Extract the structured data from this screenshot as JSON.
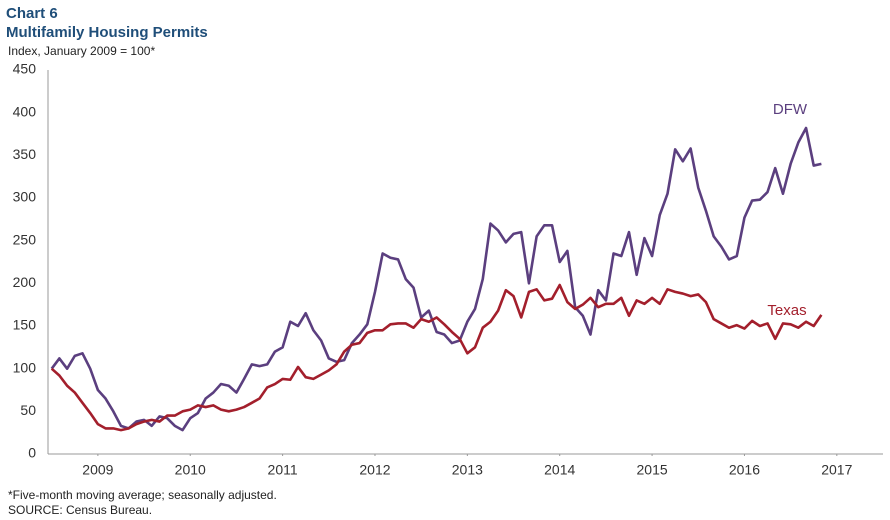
{
  "chart_data": {
    "type": "line",
    "title": "Chart 6",
    "subtitle": "Multifamily Housing Permits",
    "y_label": "Index, January 2009 = 100*",
    "notes": [
      "*Five-month moving average; seasonally adjusted.",
      "SOURCE: Census Bureau."
    ],
    "x": [
      2009.0,
      2009.083,
      2009.167,
      2009.25,
      2009.333,
      2009.417,
      2009.5,
      2009.583,
      2009.667,
      2009.75,
      2009.833,
      2009.917,
      2010.0,
      2010.083,
      2010.167,
      2010.25,
      2010.333,
      2010.417,
      2010.5,
      2010.583,
      2010.667,
      2010.75,
      2010.833,
      2010.917,
      2011.0,
      2011.083,
      2011.167,
      2011.25,
      2011.333,
      2011.417,
      2011.5,
      2011.583,
      2011.667,
      2011.75,
      2011.833,
      2011.917,
      2012.0,
      2012.083,
      2012.167,
      2012.25,
      2012.333,
      2012.417,
      2012.5,
      2012.583,
      2012.667,
      2012.75,
      2012.833,
      2012.917,
      2013.0,
      2013.083,
      2013.167,
      2013.25,
      2013.333,
      2013.417,
      2013.5,
      2013.583,
      2013.667,
      2013.75,
      2013.833,
      2013.917,
      2014.0,
      2014.083,
      2014.167,
      2014.25,
      2014.333,
      2014.417,
      2014.5,
      2014.583,
      2014.667,
      2014.75,
      2014.833,
      2014.917,
      2015.0,
      2015.083,
      2015.167,
      2015.25,
      2015.333,
      2015.417,
      2015.5,
      2015.583,
      2015.667,
      2015.75,
      2015.833,
      2015.917,
      2016.0,
      2016.083,
      2016.167,
      2016.25,
      2016.333,
      2016.417,
      2016.5,
      2016.583,
      2016.667,
      2016.75,
      2016.833,
      2016.917,
      2017.0,
      2017.083,
      2017.167,
      2017.25,
      2017.333
    ],
    "series": [
      {
        "name": "DFW",
        "color": "#5b3f7f",
        "values": [
          100,
          112,
          100,
          115,
          118,
          100,
          75,
          65,
          50,
          33,
          30,
          38,
          40,
          33,
          44,
          42,
          33,
          28,
          42,
          48,
          65,
          72,
          82,
          80,
          72,
          88,
          105,
          103,
          105,
          120,
          125,
          155,
          150,
          165,
          145,
          133,
          112,
          108,
          110,
          130,
          140,
          152,
          190,
          235,
          230,
          228,
          205,
          195,
          160,
          168,
          143,
          140,
          130,
          133,
          155,
          170,
          205,
          270,
          262,
          248,
          258,
          260,
          200,
          255,
          268,
          268,
          225,
          238,
          172,
          162,
          140,
          192,
          180,
          235,
          232,
          260,
          210,
          253,
          232,
          280,
          305,
          357,
          343,
          358,
          312,
          285,
          255,
          243,
          228,
          232,
          277,
          297,
          298,
          307,
          335,
          305,
          340,
          365,
          382,
          338,
          340
        ]
      },
      {
        "name": "Texas",
        "color": "#a31f2c",
        "values": [
          100,
          92,
          80,
          72,
          60,
          48,
          35,
          30,
          30,
          28,
          30,
          35,
          38,
          40,
          38,
          45,
          45,
          50,
          52,
          57,
          55,
          57,
          52,
          50,
          52,
          55,
          60,
          65,
          78,
          82,
          88,
          87,
          102,
          90,
          88,
          93,
          98,
          105,
          120,
          128,
          130,
          142,
          145,
          145,
          152,
          153,
          153,
          148,
          158,
          155,
          160,
          152,
          143,
          135,
          118,
          125,
          148,
          155,
          168,
          192,
          185,
          160,
          190,
          193,
          180,
          182,
          198,
          178,
          170,
          175,
          183,
          172,
          176,
          176,
          183,
          162,
          180,
          176,
          183,
          176,
          193,
          190,
          188,
          185,
          187,
          178,
          158,
          153,
          148,
          151,
          147,
          156,
          150,
          153,
          135,
          153,
          152,
          148,
          155,
          150,
          163
        ]
      }
    ],
    "xlim": [
      2008.96,
      2018.0
    ],
    "xticks": [
      {
        "value": 2009.5,
        "label": "2009"
      },
      {
        "value": 2010.5,
        "label": "2010"
      },
      {
        "value": 2011.5,
        "label": "2011"
      },
      {
        "value": 2012.5,
        "label": "2012"
      },
      {
        "value": 2013.5,
        "label": "2013"
      },
      {
        "value": 2014.5,
        "label": "2014"
      },
      {
        "value": 2015.5,
        "label": "2015"
      },
      {
        "value": 2016.5,
        "label": "2016"
      },
      {
        "value": 2017.5,
        "label": "2017"
      }
    ],
    "ylim": [
      0,
      450
    ],
    "yticks": [
      0,
      50,
      100,
      150,
      200,
      250,
      300,
      350,
      400,
      450
    ],
    "grid": false
  }
}
